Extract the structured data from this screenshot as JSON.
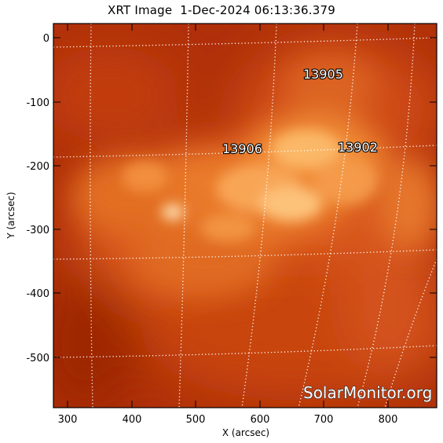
{
  "title": "XRT Image  1-Dec-2024 06:13:36.379",
  "x_axis": {
    "label": "X (arcsec)",
    "ticks": [
      "300",
      "400",
      "500",
      "600",
      "700",
      "800"
    ]
  },
  "y_axis": {
    "label": "Y (arcsec)",
    "ticks": [
      "0",
      "-100",
      "-200",
      "-300",
      "-400",
      "-500"
    ]
  },
  "active_regions": [
    {
      "number": "13905"
    },
    {
      "number": "13906"
    },
    {
      "number": "13902"
    }
  ],
  "watermark": "SolarMonitor.org",
  "colors": {
    "background": "#ffffff",
    "image_dark": "#a82a07",
    "image_bright": "#ffd9a0",
    "grid": "#ffffff"
  }
}
